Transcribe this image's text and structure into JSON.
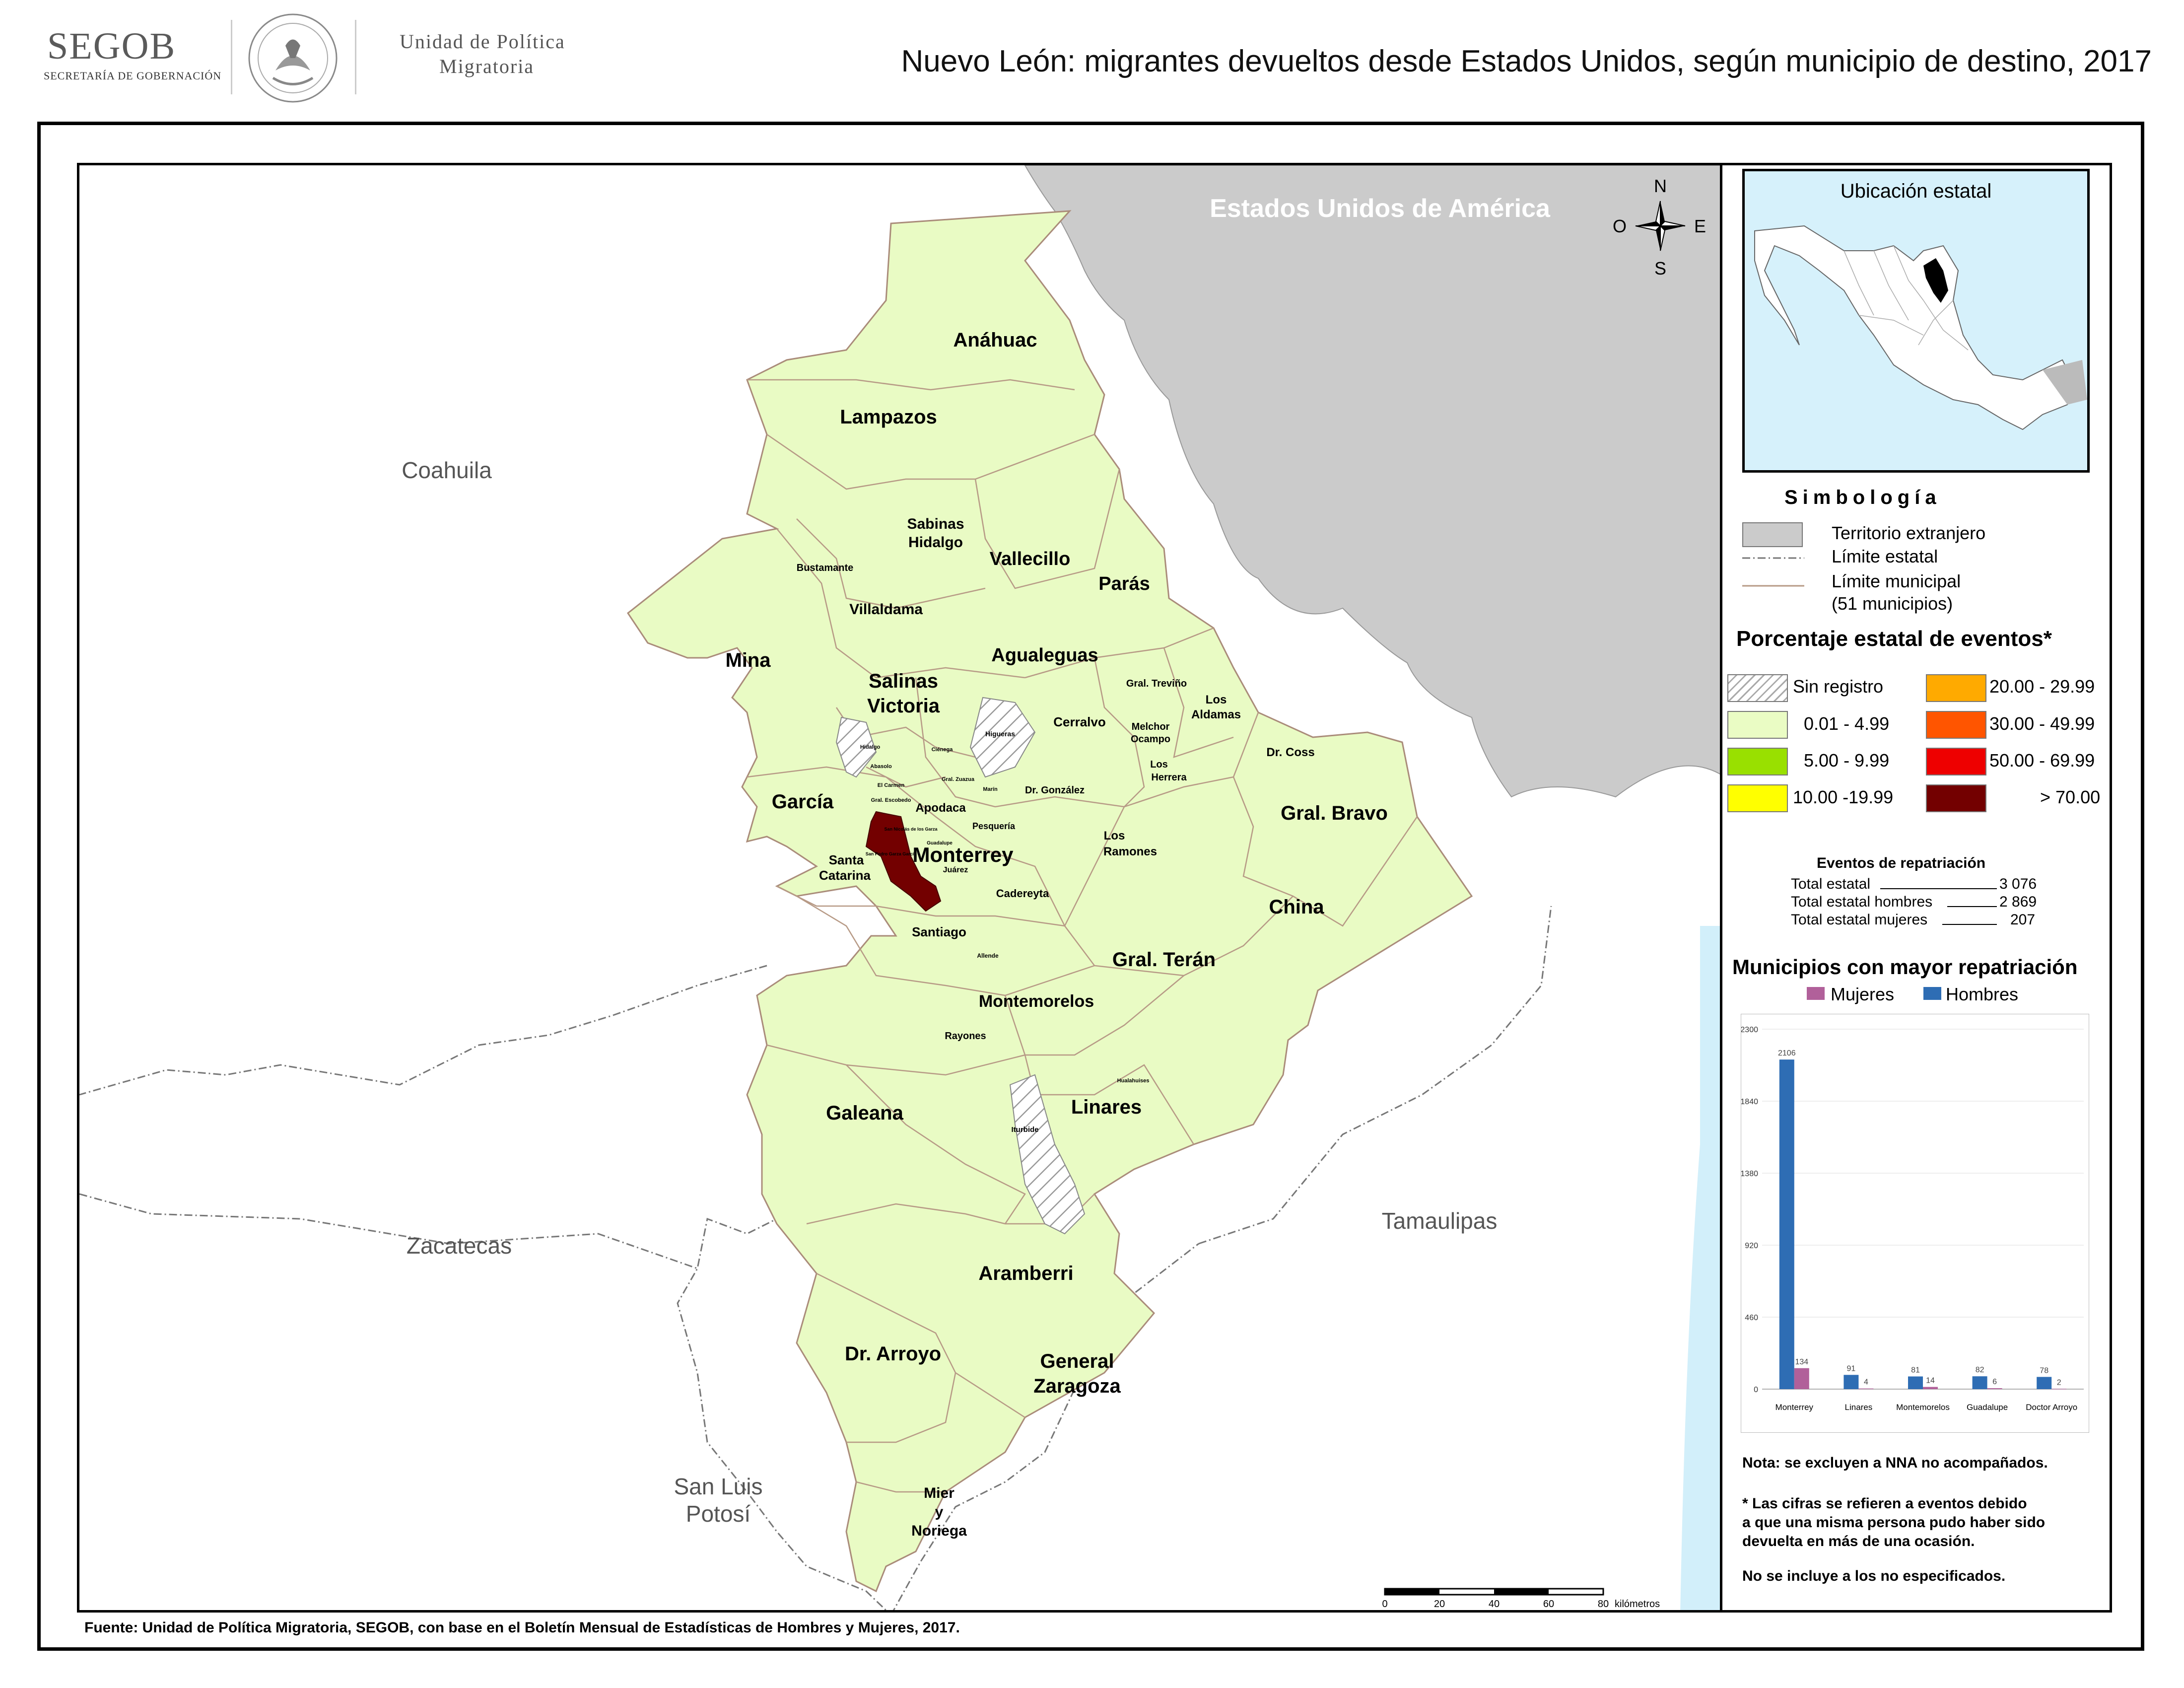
{
  "header": {
    "agency": "SEGOB",
    "agency_sub": "SECRETARÍA DE GOBERNACIÓN",
    "unit_line1": "Unidad de Política",
    "unit_line2": "Migratoria",
    "title": "Nuevo León: migrantes devueltos desde Estados Unidos, según municipio de destino, 2017"
  },
  "map": {
    "neighbors": {
      "usa": "Estados Unidos de América",
      "coahuila": "Coahuila",
      "zacatecas": "Zacatecas",
      "tamaulipas": "Tamaulipas",
      "slp_line1": "San Luis",
      "slp_line2": "Potosí"
    },
    "compass": {
      "n": "N",
      "s": "S",
      "e": "E",
      "w": "O"
    },
    "scale": {
      "ticks": [
        "0",
        "20",
        "40",
        "60",
        "80"
      ],
      "unit": "kilómetros"
    },
    "municipalities": {
      "anahuac": "Anáhuac",
      "lampazos": "Lampazos",
      "sabinas_1": "Sabinas",
      "sabinas_2": "Hidalgo",
      "vallecillo": "Vallecillo",
      "paras": "Parás",
      "bustamante": "Bustamante",
      "villaldama": "Villaldama",
      "mina": "Mina",
      "agualeguas": "Agualeguas",
      "salinas_1": "Salinas",
      "salinas_2": "Victoria",
      "gral_trevino": "Gral. Treviño",
      "los_aldamas_1": "Los",
      "los_aldamas_2": "Aldamas",
      "cerralvo": "Cerralvo",
      "melchor_1": "Melchor",
      "melchor_2": "Ocampo",
      "higueras": "Higueras",
      "hidalgo": "Hidalgo",
      "abasolo": "Abasolo",
      "cienega": "Ciénega",
      "gral_zuazua": "Gral. Zuazua",
      "el_carmen": "El Carmen",
      "marin": "Marín",
      "dr_gonzalez": "Dr. González",
      "los_herrera_1": "Los",
      "los_herrera_2": "Herrera",
      "dr_coss": "Dr. Coss",
      "gral_escobedo": "Gral. Escobedo",
      "garcia": "García",
      "apodaca": "Apodaca",
      "pesqueria": "Pesquería",
      "gral_bravo": "Gral. Bravo",
      "san_nicolas": "San Nicolás de los Garza",
      "guadalupe": "Guadalupe",
      "san_pedro": "San Pedro Garza García",
      "monterrey": "Monterrey",
      "juarez": "Juárez",
      "los_ramones_1": "Los",
      "los_ramones_2": "Ramones",
      "santa_cat_1": "Santa",
      "santa_cat_2": "Catarina",
      "cadereyta": "Cadereyta",
      "china": "China",
      "santiago": "Santiago",
      "allende": "Allende",
      "gral_teran": "Gral. Terán",
      "montemorelos": "Montemorelos",
      "rayones": "Rayones",
      "hualahuises": "Hualahuises",
      "linares": "Linares",
      "galeana": "Galeana",
      "iturbide": "Iturbide",
      "aramberri": "Aramberri",
      "dr_arroyo": "Dr. Arroyo",
      "gral_zaragoza_1": "General",
      "gral_zaragoza_2": "Zaragoza",
      "mier_1": "Mier",
      "mier_2": "y",
      "mier_3": "Noriega"
    }
  },
  "inset": {
    "title": "Ubicación estatal"
  },
  "legend": {
    "title": "Simbología",
    "foreign": "Territorio extranjero",
    "state_limit": "Límite estatal",
    "municipal_limit": "Límite municipal",
    "municipal_count": "(51 municipios)",
    "pct_title": "Porcentaje estatal de eventos*",
    "ranges": [
      {
        "label": "Sin registro",
        "color": "hatch"
      },
      {
        "label": "0.01  - 4.99",
        "color": "#eafcc4"
      },
      {
        "label": "5.00  - 9.99",
        "color": "#99e000"
      },
      {
        "label": "10.00 -19.99",
        "color": "#ffff00"
      },
      {
        "label": "20.00 - 29.99",
        "color": "#ffaa00"
      },
      {
        "label": "30.00 - 49.99",
        "color": "#ff5500"
      },
      {
        "label": "50.00 - 69.99",
        "color": "#ee0000"
      },
      {
        "label": "> 70.00",
        "color": "#730000"
      }
    ]
  },
  "events": {
    "title": "Eventos de repatriación",
    "rows": [
      {
        "label": "Total estatal",
        "value": "3 076"
      },
      {
        "label": "Total estatal hombres",
        "value": "2 869"
      },
      {
        "label": "Total estatal mujeres",
        "value": "207"
      }
    ]
  },
  "chart_data": {
    "type": "bar",
    "title": "Municipios con mayor repatriación",
    "categories": [
      "Monterrey",
      "Linares",
      "Montemorelos",
      "Guadalupe",
      "Doctor Arroyo"
    ],
    "series": [
      {
        "name": "Hombres",
        "color": "#2e6db4",
        "values": [
          2106,
          91,
          81,
          82,
          78
        ]
      },
      {
        "name": "Mujeres",
        "color": "#b1609a",
        "values": [
          134,
          4,
          14,
          6,
          2
        ]
      }
    ],
    "yticks": [
      "0",
      "460",
      "920",
      "1380",
      "1840",
      "2300"
    ],
    "ylim": [
      0,
      2300
    ],
    "legend_position": "top"
  },
  "notes": {
    "nna": "Nota: se excluyen a NNA no acompañados.",
    "events_1": "* Las cifras se refieren a eventos debido",
    "events_2": "a que una misma persona pudo haber sido",
    "events_3": "devuelta en más de una ocasión.",
    "unspecified": "No se incluye a los no especificados."
  },
  "footer": "Fuente: Unidad de Política Migratoria, SEGOB, con base en el Boletín Mensual de Estadísticas de Hombres y Mujeres, 2017."
}
